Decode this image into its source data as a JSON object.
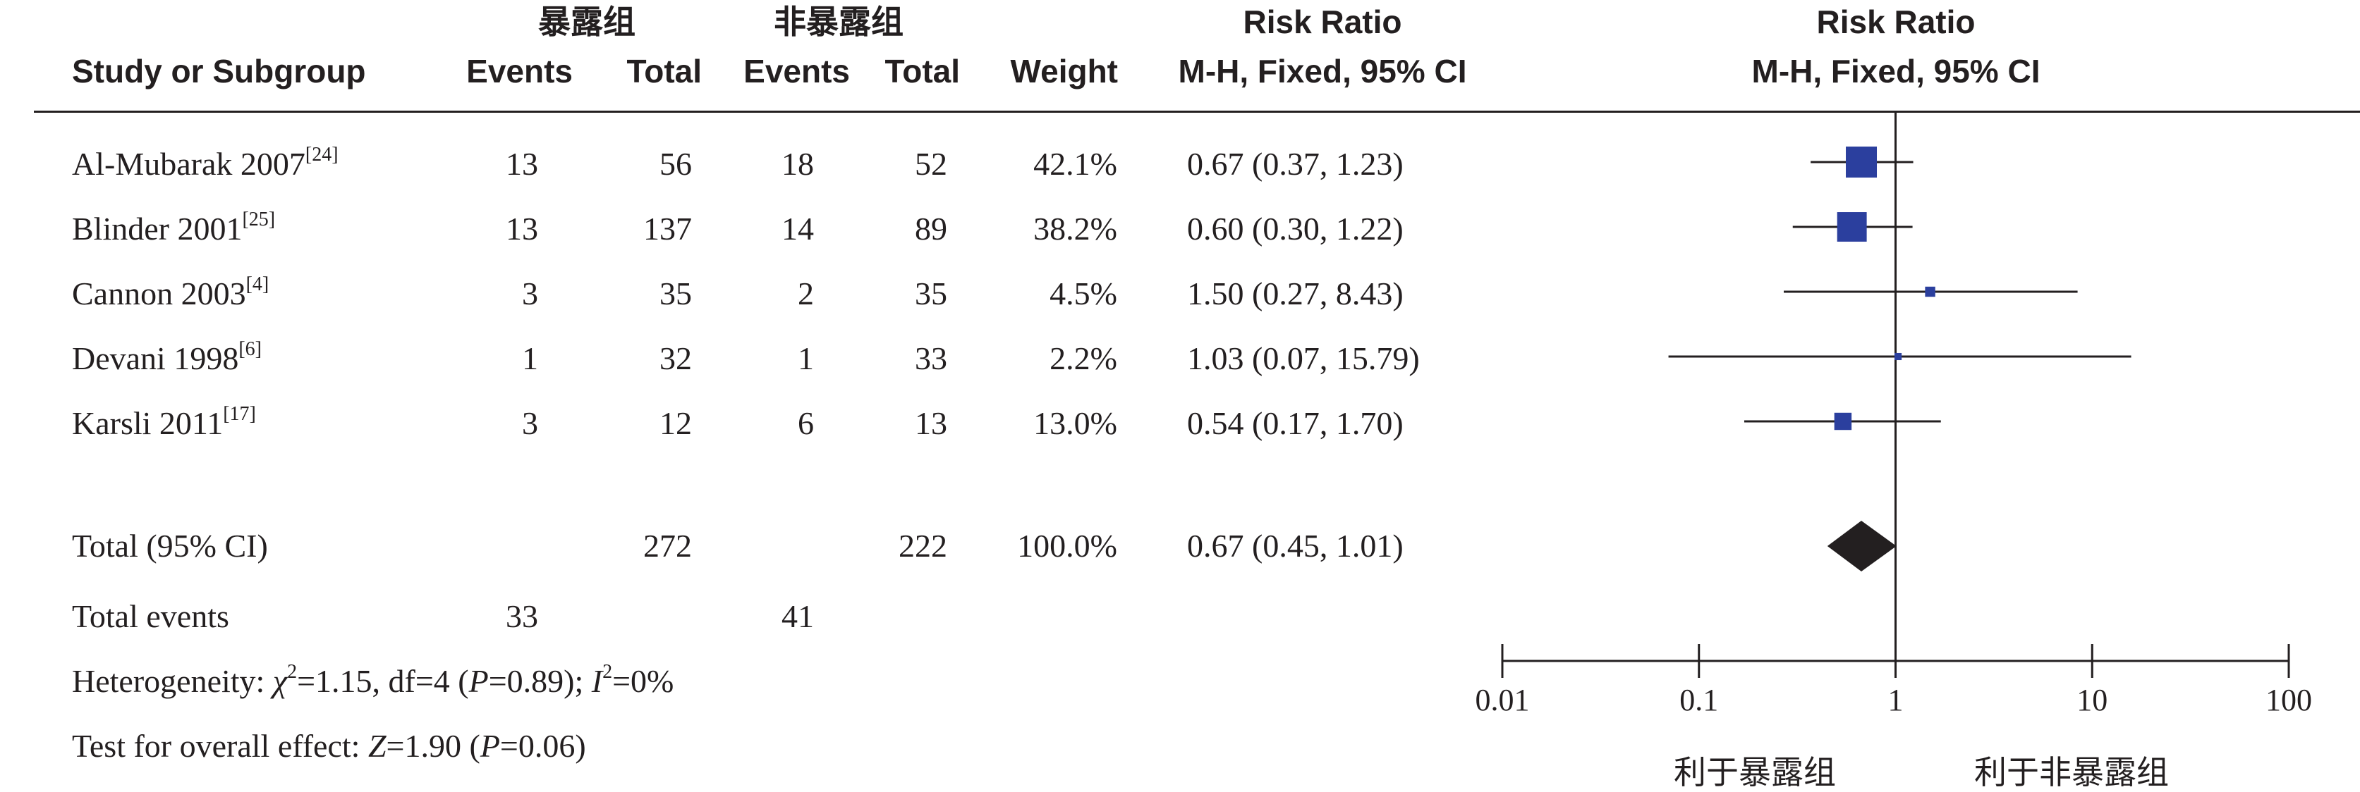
{
  "headers": {
    "group_exposed": "暴露组",
    "group_unexposed": "非暴露组",
    "study_or_subgroup": "Study or Subgroup",
    "events": "Events",
    "total": "Total",
    "weight": "Weight",
    "risk_ratio": "Risk Ratio",
    "method": "M-H, Fixed, 95% CI"
  },
  "studies": [
    {
      "name": "Al-Mubarak 2007",
      "ref": "[24]",
      "exp_events": "13",
      "exp_total": "56",
      "ctl_events": "18",
      "ctl_total": "52",
      "weight": "42.1%",
      "rr_text": "0.67 (0.37, 1.23)"
    },
    {
      "name": "Blinder 2001",
      "ref": "[25]",
      "exp_events": "13",
      "exp_total": "137",
      "ctl_events": "14",
      "ctl_total": "89",
      "weight": "38.2%",
      "rr_text": "0.60 (0.30, 1.22)"
    },
    {
      "name": "Cannon 2003",
      "ref": "[4]",
      "exp_events": "3",
      "exp_total": "35",
      "ctl_events": "2",
      "ctl_total": "35",
      "weight": "4.5%",
      "rr_text": "1.50 (0.27, 8.43)"
    },
    {
      "name": "Devani 1998",
      "ref": "[6]",
      "exp_events": "1",
      "exp_total": "32",
      "ctl_events": "1",
      "ctl_total": "33",
      "weight": "2.2%",
      "rr_text": "1.03 (0.07, 15.79)"
    },
    {
      "name": "Karsli 2011",
      "ref": "[17]",
      "exp_events": "3",
      "exp_total": "12",
      "ctl_events": "6",
      "ctl_total": "13",
      "weight": "13.0%",
      "rr_text": "0.54 (0.17, 1.70)"
    }
  ],
  "total": {
    "label": "Total (95% CI)",
    "exp_total": "272",
    "ctl_total": "222",
    "weight": "100.0%",
    "rr_text": "0.67 (0.45, 1.01)"
  },
  "total_events": {
    "label": "Total events",
    "exp_events": "33",
    "ctl_events": "41"
  },
  "heterogeneity": {
    "prefix": "Heterogeneity: ",
    "chi": "χ",
    "chi_sup": "2",
    "chi_value": "=1.15, df=4 (",
    "p_symbol": "P",
    "p_value": "=0.89); ",
    "i_symbol": "I",
    "i_sup": "2",
    "i_value": "=0%"
  },
  "overall_effect": {
    "prefix": "Test for overall effect: ",
    "z_symbol": "Z",
    "z_value": "=1.90 (",
    "p_symbol": "P",
    "p_value": "=0.06)"
  },
  "axis_labels": {
    "favours_exposed": "利于暴露组",
    "favours_unexposed": "利于非暴露组"
  },
  "colors": {
    "text": "#231f20",
    "marker": "#2b3f9e",
    "diamond": "#231f20"
  },
  "chart_data": {
    "type": "forest",
    "scale": "log",
    "xlim": [
      0.01,
      100
    ],
    "ticks": [
      0.01,
      0.1,
      1,
      10,
      100
    ],
    "tick_labels": [
      "0.01",
      "0.1",
      "1",
      "10",
      "100"
    ],
    "reference_line": 1,
    "studies": [
      {
        "name": "Al-Mubarak 2007",
        "rr": 0.67,
        "lower": 0.37,
        "upper": 1.23,
        "weight": 42.1
      },
      {
        "name": "Blinder 2001",
        "rr": 0.6,
        "lower": 0.3,
        "upper": 1.22,
        "weight": 38.2
      },
      {
        "name": "Cannon 2003",
        "rr": 1.5,
        "lower": 0.27,
        "upper": 8.43,
        "weight": 4.5
      },
      {
        "name": "Devani 1998",
        "rr": 1.03,
        "lower": 0.07,
        "upper": 15.79,
        "weight": 2.2
      },
      {
        "name": "Karsli 2011",
        "rr": 0.54,
        "lower": 0.17,
        "upper": 1.7,
        "weight": 13.0
      }
    ],
    "pooled": {
      "name": "Total (95% CI)",
      "rr": 0.67,
      "lower": 0.45,
      "upper": 1.01
    }
  }
}
